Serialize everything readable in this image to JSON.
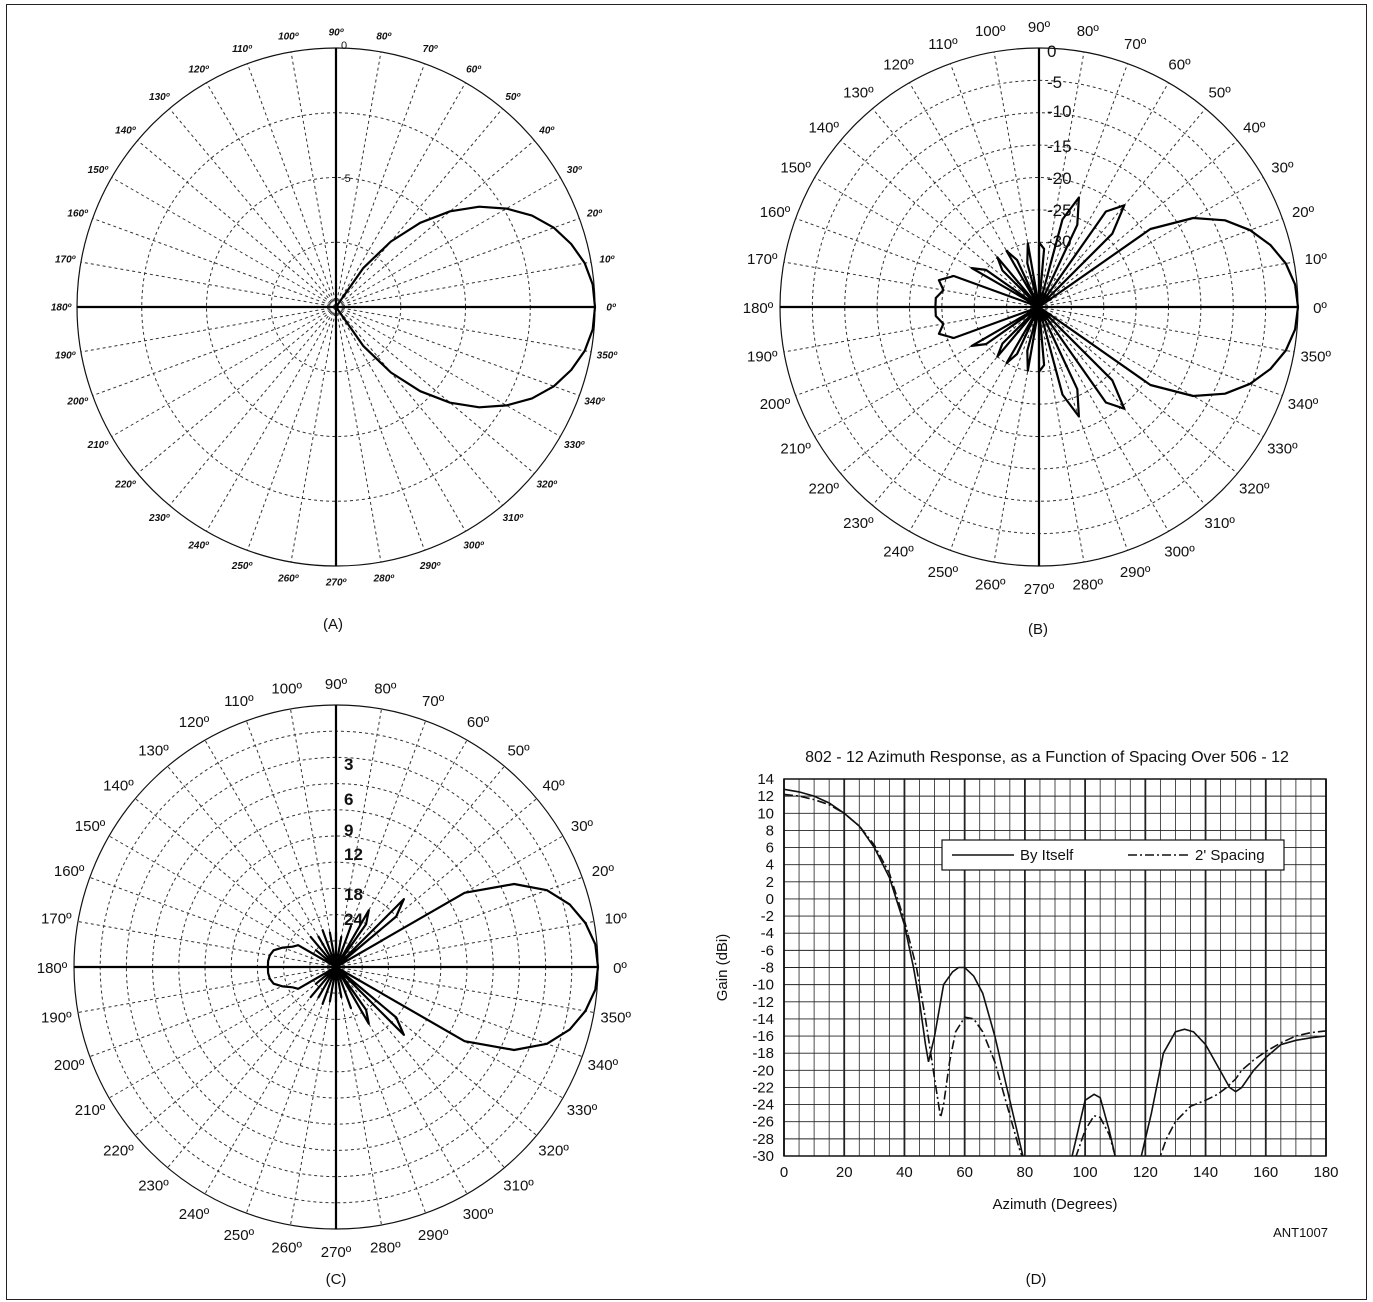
{
  "chart_data": [
    {
      "panel": "A",
      "type": "polar",
      "caption": "(A)",
      "angle_labels": [
        "0º",
        "10º",
        "20º",
        "30º",
        "40º",
        "50º",
        "60º",
        "70º",
        "80º",
        "90º",
        "100º",
        "110º",
        "120º",
        "130º",
        "140º",
        "150º",
        "160º",
        "170º",
        "180º",
        "190º",
        "200º",
        "210º",
        "220º",
        "230º",
        "240º",
        "250º",
        "260º",
        "270º",
        "280º",
        "290º",
        "300º",
        "310º",
        "320º",
        "330º",
        "340º",
        "350º"
      ],
      "ring_labels": [
        "0",
        "-5"
      ],
      "ring_range_db": [
        -20,
        0
      ],
      "rings_db": [
        -5,
        -10,
        -15
      ],
      "series": [
        {
          "theta": [
            0,
            5,
            10,
            15,
            20,
            25,
            30,
            35,
            40,
            45,
            50,
            55,
            60,
            65,
            70,
            75,
            80,
            85,
            90
          ],
          "gain_db": [
            0,
            -0.1,
            -0.5,
            -1.2,
            -2.1,
            -3.3,
            -4.8,
            -6.5,
            -8.5,
            -10.8,
            -13.4,
            -16.3,
            -20,
            -20,
            -20,
            -20,
            -20,
            -20,
            -20
          ],
          "symmetric": true
        }
      ]
    },
    {
      "panel": "B",
      "type": "polar",
      "caption": "(B)",
      "angle_labels": [
        "0º",
        "10º",
        "20º",
        "30º",
        "40º",
        "50º",
        "60º",
        "70º",
        "80º",
        "90º",
        "100º",
        "110º",
        "120º",
        "130º",
        "140º",
        "150º",
        "160º",
        "170º",
        "180º",
        "190º",
        "200º",
        "210º",
        "220º",
        "230º",
        "240º",
        "250º",
        "260º",
        "270º",
        "280º",
        "290º",
        "300º",
        "310º",
        "320º",
        "330º",
        "340º",
        "350º"
      ],
      "ring_labels": [
        "0",
        "-5",
        "-10",
        "-15",
        "-20",
        "-25",
        "-30"
      ],
      "ring_range_db": [
        -40,
        0
      ],
      "rings_db": [
        -5,
        -10,
        -15,
        -20,
        -25,
        -30,
        -35
      ],
      "series": [
        {
          "theta": [
            0,
            5,
            10,
            15,
            20,
            25,
            30,
            35,
            40,
            45,
            50,
            55,
            60,
            65,
            70,
            75,
            80,
            85,
            90,
            95,
            100,
            105,
            110,
            115,
            120,
            125,
            130,
            135,
            140,
            145,
            150,
            155,
            160,
            165,
            170,
            175,
            180
          ],
          "gain_db": [
            0,
            -0.3,
            -1.3,
            -3,
            -5.3,
            -8.3,
            -12.5,
            -19,
            -40,
            -24,
            -19.5,
            -22,
            -40,
            -26,
            -22,
            -26,
            -40,
            -31,
            -30,
            -40,
            -30,
            -33,
            -40,
            -32,
            -30,
            -40,
            -30,
            -32,
            -40,
            -30,
            -28,
            -40,
            -26,
            -24,
            -25,
            -24,
            -24
          ],
          "symmetric": true
        }
      ]
    },
    {
      "panel": "C",
      "type": "polar",
      "caption": "(C)",
      "angle_labels": [
        "0º",
        "10º",
        "20º",
        "30º",
        "40º",
        "50º",
        "60º",
        "70º",
        "80º",
        "90º",
        "100º",
        "110º",
        "120º",
        "130º",
        "140º",
        "150º",
        "160º",
        "170º",
        "180º",
        "190º",
        "200º",
        "210º",
        "220º",
        "230º",
        "240º",
        "250º",
        "260º",
        "270º",
        "280º",
        "290º",
        "300º",
        "310º",
        "320º",
        "330º",
        "340º",
        "350º"
      ],
      "ring_labels": [
        "3",
        "6",
        "9",
        "12",
        "18",
        "24"
      ],
      "ring_range_db": [
        -30,
        0
      ],
      "rings_db": [
        -3,
        -6,
        -9,
        -12,
        -15,
        -18,
        -21,
        -24,
        -27
      ],
      "series": [
        {
          "theta": [
            0,
            5,
            10,
            15,
            20,
            25,
            30,
            35,
            40,
            45,
            50,
            55,
            60,
            65,
            70,
            75,
            80,
            85,
            90,
            95,
            100,
            105,
            110,
            115,
            120,
            125,
            130,
            135,
            140,
            145,
            150,
            155,
            160,
            165,
            170,
            175,
            180
          ],
          "gain_db": [
            0,
            -0.2,
            -1,
            -2.3,
            -4.3,
            -7.5,
            -13,
            -30,
            -21,
            -19,
            -30,
            -24,
            -22.5,
            -30,
            -25,
            -30,
            -26.5,
            -30,
            -26,
            -30,
            -26,
            -30,
            -25.5,
            -30,
            -26,
            -30,
            -25.5,
            -30,
            -27,
            -30,
            -25,
            -24.5,
            -23.5,
            -22.6,
            -22.3,
            -22.2,
            -22.2
          ],
          "symmetric": true
        }
      ]
    },
    {
      "panel": "D",
      "type": "line",
      "caption": "(D)",
      "title": "802 - 12 Azimuth Response, as a Function of Spacing Over 506 - 12",
      "xlabel": "Azimuth (Degrees)",
      "ylabel": "Gain (dBi)",
      "xlim": [
        0,
        180
      ],
      "ylim": [
        -30,
        14
      ],
      "xticks": [
        "0",
        "20",
        "40",
        "60",
        "80",
        "100",
        "120",
        "140",
        "160",
        "180"
      ],
      "yticks": [
        "14",
        "12",
        "10",
        "8",
        "6",
        "4",
        "2",
        "0",
        "-2",
        "-4",
        "-6",
        "-8",
        "-10",
        "-12",
        "-14",
        "-16",
        "-18",
        "-20",
        "-22",
        "-24",
        "-26",
        "-28",
        "-30"
      ],
      "grid": true,
      "legend_position": "upper-right",
      "code": "ANT1007",
      "series": [
        {
          "name": "By Itself",
          "style": "solid",
          "x": [
            0,
            5,
            10,
            15,
            20,
            25,
            30,
            35,
            40,
            43,
            45,
            47,
            48,
            50,
            53,
            56,
            58,
            60,
            63,
            66,
            70,
            74,
            78,
            80,
            82,
            85,
            90,
            95,
            97,
            100,
            103,
            105,
            108,
            110,
            112,
            114,
            118,
            122,
            126,
            130,
            133,
            136,
            140,
            144,
            148,
            150,
            152,
            156,
            160,
            165,
            170,
            175,
            180
          ],
          "y": [
            12.8,
            12.5,
            12,
            11.2,
            10,
            8.5,
            6,
            2.5,
            -3,
            -8,
            -12,
            -17,
            -19,
            -16,
            -10,
            -8.5,
            -8,
            -8,
            -9,
            -11,
            -16,
            -22,
            -28,
            -31,
            -31,
            -31,
            -31,
            -31,
            -28,
            -23.5,
            -22.8,
            -23.2,
            -27,
            -30,
            -31,
            -31,
            -31,
            -25,
            -18,
            -15.5,
            -15.2,
            -15.5,
            -17,
            -19.5,
            -22,
            -22.5,
            -22,
            -20,
            -18.5,
            -17,
            -16.5,
            -16.2,
            -16
          ]
        },
        {
          "name": "2' Spacing",
          "style": "dash-dot",
          "x": [
            0,
            5,
            10,
            15,
            20,
            25,
            30,
            35,
            40,
            44,
            47,
            50,
            52,
            53,
            55,
            57,
            60,
            63,
            66,
            70,
            74,
            78,
            80,
            84,
            90,
            96,
            99,
            100,
            103,
            105,
            108,
            110,
            112,
            115,
            118,
            122,
            125,
            127,
            130,
            135,
            140,
            144,
            147,
            150,
            152,
            156,
            160,
            165,
            170,
            175,
            180
          ],
          "y": [
            12.2,
            12,
            11.6,
            11,
            10,
            8.5,
            6.3,
            3,
            -2.5,
            -8,
            -14,
            -21,
            -25.5,
            -24,
            -19,
            -15.5,
            -13.8,
            -14,
            -15.5,
            -19,
            -24,
            -29,
            -31,
            -31,
            -31,
            -31,
            -28,
            -27,
            -25.3,
            -25.5,
            -27.5,
            -30,
            -31,
            -31,
            -31,
            -31,
            -30,
            -28,
            -26,
            -24.2,
            -23.5,
            -22.8,
            -22,
            -21,
            -20,
            -18.8,
            -17.8,
            -16.8,
            -16,
            -15.6,
            -15.4
          ]
        }
      ]
    }
  ]
}
